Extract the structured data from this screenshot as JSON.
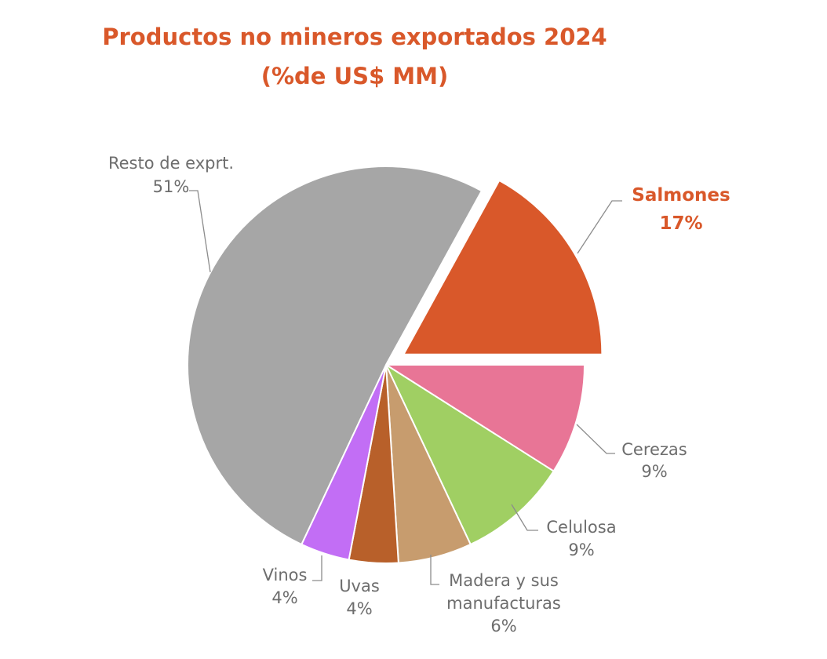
{
  "title_line1": "Productos no mineros exportados 2024",
  "title_line2": "(%de US$ MM)",
  "chart_data": {
    "type": "pie",
    "title": "Productos no mineros exportados 2024 (%de US$ MM)",
    "unit": "%",
    "slices": [
      {
        "name": "Salmones",
        "value": 17,
        "value_label": "17%",
        "color": "#d9582a",
        "exploded": true,
        "highlight": true
      },
      {
        "name": "Cerezas",
        "value": 9,
        "value_label": "9%",
        "color": "#e87596"
      },
      {
        "name": "Celulosa",
        "value": 9,
        "value_label": "9%",
        "color": "#a0cf63"
      },
      {
        "name": "Madera y sus manufacturas",
        "value": 6,
        "value_label": "6%",
        "color": "#c79c6e"
      },
      {
        "name": "Uvas",
        "value": 4,
        "value_label": "4%",
        "color": "#b8602a"
      },
      {
        "name": "Vinos",
        "value": 4,
        "value_label": "4%",
        "color": "#c26ef5"
      },
      {
        "name": "Resto de exprt.",
        "value": 51,
        "value_label": "51%",
        "color": "#a6a6a6"
      }
    ]
  }
}
